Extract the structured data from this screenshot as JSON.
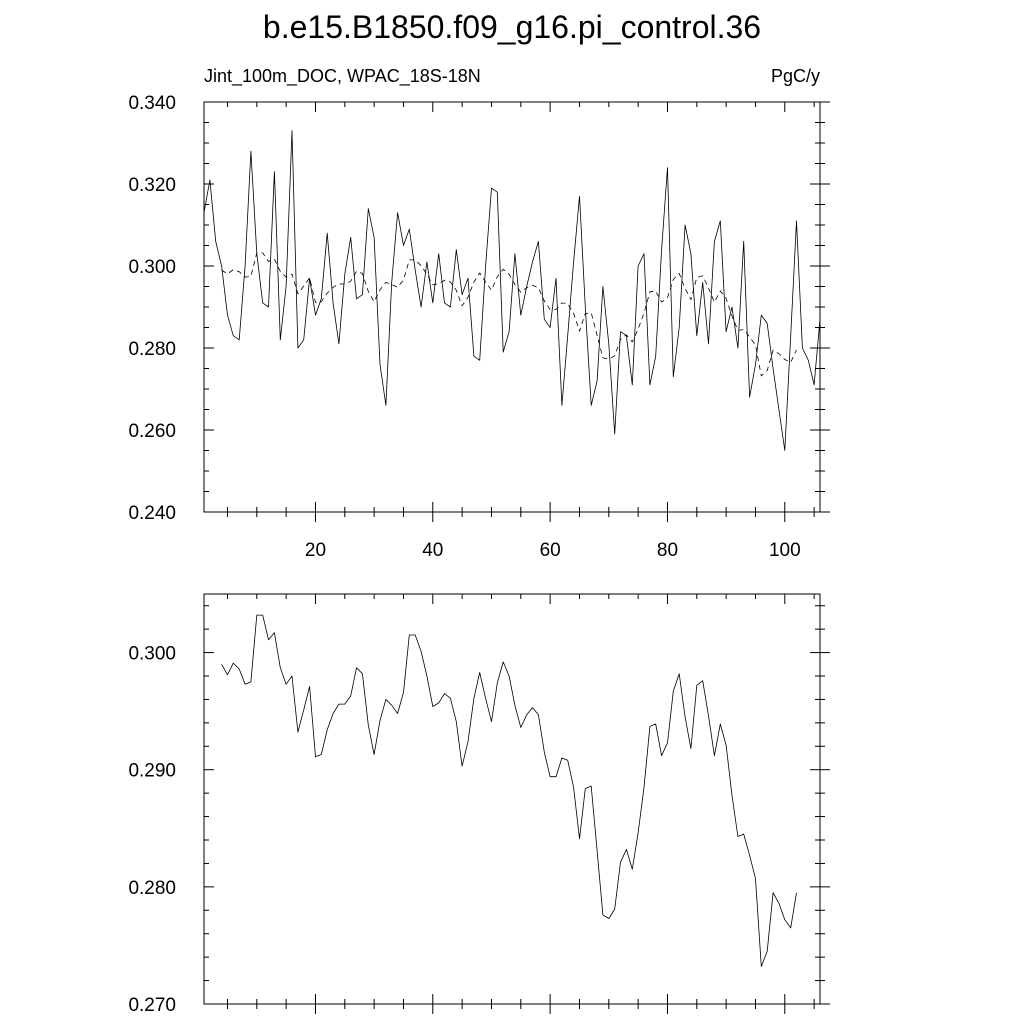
{
  "title": "b.e15.B1850.f09_g16.pi_control.36",
  "left_label": "Jint_100m_DOC, WPAC_18S-18N",
  "right_label": "PgC/y",
  "chart_data": [
    {
      "type": "line",
      "ylim": [
        0.24,
        0.34
      ],
      "yticks": [
        "0.240",
        "0.260",
        "0.280",
        "0.300",
        "0.320",
        "0.340"
      ],
      "xlim": [
        1,
        106
      ],
      "xticks": [
        "20",
        "40",
        "60",
        "80",
        "100"
      ],
      "series": [
        {
          "style": "solid",
          "x": [
            1,
            2,
            3,
            4,
            5,
            6,
            7,
            8,
            9,
            10,
            11,
            12,
            13,
            14,
            15,
            16,
            17,
            18,
            19,
            20,
            21,
            22,
            23,
            24,
            25,
            26,
            27,
            28,
            29,
            30,
            31,
            32,
            33,
            34,
            35,
            36,
            37,
            38,
            39,
            40,
            41,
            42,
            43,
            44,
            45,
            46,
            47,
            48,
            49,
            50,
            51,
            52,
            53,
            54,
            55,
            56,
            57,
            58,
            59,
            60,
            61,
            62,
            63,
            64,
            65,
            66,
            67,
            68,
            69,
            70,
            71,
            72,
            73,
            74,
            75,
            76,
            77,
            78,
            79,
            80,
            81,
            82,
            83,
            84,
            85,
            86,
            87,
            88,
            89,
            90,
            91,
            92,
            93,
            94,
            95,
            96,
            97,
            98,
            99,
            100,
            101,
            102,
            103,
            104,
            105,
            106
          ],
          "values": [
            0.313,
            0.321,
            0.306,
            0.3,
            0.288,
            0.283,
            0.282,
            0.3,
            0.328,
            0.303,
            0.291,
            0.29,
            0.323,
            0.282,
            0.295,
            0.333,
            0.28,
            0.282,
            0.297,
            0.288,
            0.292,
            0.308,
            0.291,
            0.281,
            0.298,
            0.307,
            0.292,
            0.293,
            0.314,
            0.307,
            0.276,
            0.266,
            0.296,
            0.313,
            0.305,
            0.309,
            0.299,
            0.29,
            0.301,
            0.291,
            0.303,
            0.291,
            0.29,
            0.304,
            0.293,
            0.297,
            0.278,
            0.277,
            0.3,
            0.319,
            0.318,
            0.279,
            0.284,
            0.303,
            0.288,
            0.295,
            0.301,
            0.306,
            0.287,
            0.285,
            0.297,
            0.266,
            0.283,
            0.301,
            0.317,
            0.29,
            0.266,
            0.272,
            0.295,
            0.281,
            0.259,
            0.284,
            0.283,
            0.271,
            0.3,
            0.303,
            0.271,
            0.278,
            0.304,
            0.324,
            0.273,
            0.285,
            0.31,
            0.303,
            0.283,
            0.296,
            0.281,
            0.306,
            0.311,
            0.284,
            0.29,
            0.28,
            0.306,
            0.268,
            0.276,
            0.288,
            0.286,
            0.275,
            0.265,
            0.255,
            0.283,
            0.311,
            0.28,
            0.277,
            0.271,
            0.287
          ]
        },
        {
          "style": "dashed",
          "x": [
            4,
            5,
            6,
            7,
            8,
            9,
            10,
            11,
            12,
            13,
            14,
            15,
            16,
            17,
            18,
            19,
            20,
            21,
            22,
            23,
            24,
            25,
            26,
            27,
            28,
            29,
            30,
            31,
            32,
            33,
            34,
            35,
            36,
            37,
            38,
            39,
            40,
            41,
            42,
            43,
            44,
            45,
            46,
            47,
            48,
            49,
            50,
            51,
            52,
            53,
            54,
            55,
            56,
            57,
            58,
            59,
            60,
            61,
            62,
            63,
            64,
            65,
            66,
            67,
            68,
            69,
            70,
            71,
            72,
            73,
            74,
            75,
            76,
            77,
            78,
            79,
            80,
            81,
            82,
            83,
            84,
            85,
            86,
            87,
            88,
            89,
            90,
            91,
            92,
            93,
            94,
            95,
            96,
            97,
            98,
            99,
            100,
            101,
            102
          ],
          "values": [
            0.299,
            0.2981,
            0.2991,
            0.2986,
            0.2973,
            0.2975,
            0.3032,
            0.3032,
            0.3011,
            0.3017,
            0.2987,
            0.2973,
            0.298,
            0.2932,
            0.2951,
            0.2971,
            0.2911,
            0.2913,
            0.2934,
            0.2948,
            0.2956,
            0.2956,
            0.2963,
            0.2987,
            0.2982,
            0.2938,
            0.2913,
            0.2942,
            0.296,
            0.2955,
            0.2948,
            0.2966,
            0.3015,
            0.3015,
            0.3001,
            0.298,
            0.2954,
            0.2957,
            0.2965,
            0.2961,
            0.2941,
            0.2903,
            0.2924,
            0.2961,
            0.2983,
            0.2961,
            0.2941,
            0.2974,
            0.2992,
            0.298,
            0.2955,
            0.2936,
            0.2947,
            0.2953,
            0.2947,
            0.2915,
            0.2894,
            0.2894,
            0.291,
            0.2908,
            0.2885,
            0.2841,
            0.2884,
            0.2886,
            0.2831,
            0.2776,
            0.2773,
            0.2781,
            0.2821,
            0.2832,
            0.2815,
            0.2846,
            0.2885,
            0.2937,
            0.2939,
            0.2912,
            0.2923,
            0.2967,
            0.2982,
            0.2945,
            0.2918,
            0.2972,
            0.2976,
            0.2946,
            0.2912,
            0.2939,
            0.2921,
            0.2878,
            0.2843,
            0.2845,
            0.2827,
            0.2807,
            0.2732,
            0.2745,
            0.2795,
            0.2786,
            0.2772,
            0.2765,
            0.2795
          ]
        }
      ]
    },
    {
      "type": "line",
      "ylim": [
        0.27,
        0.305
      ],
      "yticks": [
        "0.270",
        "0.280",
        "0.290",
        "0.300"
      ],
      "xlim": [
        1,
        106
      ],
      "series": [
        {
          "style": "solid",
          "x": [
            4,
            5,
            6,
            7,
            8,
            9,
            10,
            11,
            12,
            13,
            14,
            15,
            16,
            17,
            18,
            19,
            20,
            21,
            22,
            23,
            24,
            25,
            26,
            27,
            28,
            29,
            30,
            31,
            32,
            33,
            34,
            35,
            36,
            37,
            38,
            39,
            40,
            41,
            42,
            43,
            44,
            45,
            46,
            47,
            48,
            49,
            50,
            51,
            52,
            53,
            54,
            55,
            56,
            57,
            58,
            59,
            60,
            61,
            62,
            63,
            64,
            65,
            66,
            67,
            68,
            69,
            70,
            71,
            72,
            73,
            74,
            75,
            76,
            77,
            78,
            79,
            80,
            81,
            82,
            83,
            84,
            85,
            86,
            87,
            88,
            89,
            90,
            91,
            92,
            93,
            94,
            95,
            96,
            97,
            98,
            99,
            100,
            101,
            102
          ],
          "values": [
            0.299,
            0.2981,
            0.2991,
            0.2986,
            0.2973,
            0.2975,
            0.3032,
            0.3032,
            0.3011,
            0.3017,
            0.2987,
            0.2973,
            0.298,
            0.2932,
            0.2951,
            0.2971,
            0.2911,
            0.2913,
            0.2934,
            0.2948,
            0.2956,
            0.2956,
            0.2963,
            0.2987,
            0.2982,
            0.2938,
            0.2913,
            0.2942,
            0.296,
            0.2955,
            0.2948,
            0.2966,
            0.3015,
            0.3015,
            0.3001,
            0.298,
            0.2954,
            0.2957,
            0.2965,
            0.2961,
            0.2941,
            0.2903,
            0.2924,
            0.2961,
            0.2983,
            0.2961,
            0.2941,
            0.2974,
            0.2992,
            0.298,
            0.2955,
            0.2936,
            0.2947,
            0.2953,
            0.2947,
            0.2915,
            0.2894,
            0.2894,
            0.291,
            0.2908,
            0.2885,
            0.2841,
            0.2884,
            0.2886,
            0.2831,
            0.2776,
            0.2773,
            0.2781,
            0.2821,
            0.2832,
            0.2815,
            0.2846,
            0.2885,
            0.2937,
            0.2939,
            0.2912,
            0.2923,
            0.2967,
            0.2982,
            0.2945,
            0.2918,
            0.2972,
            0.2976,
            0.2946,
            0.2912,
            0.2939,
            0.2921,
            0.2878,
            0.2843,
            0.2845,
            0.2827,
            0.2807,
            0.2732,
            0.2745,
            0.2795,
            0.2786,
            0.2772,
            0.2765,
            0.2795
          ]
        }
      ]
    }
  ]
}
